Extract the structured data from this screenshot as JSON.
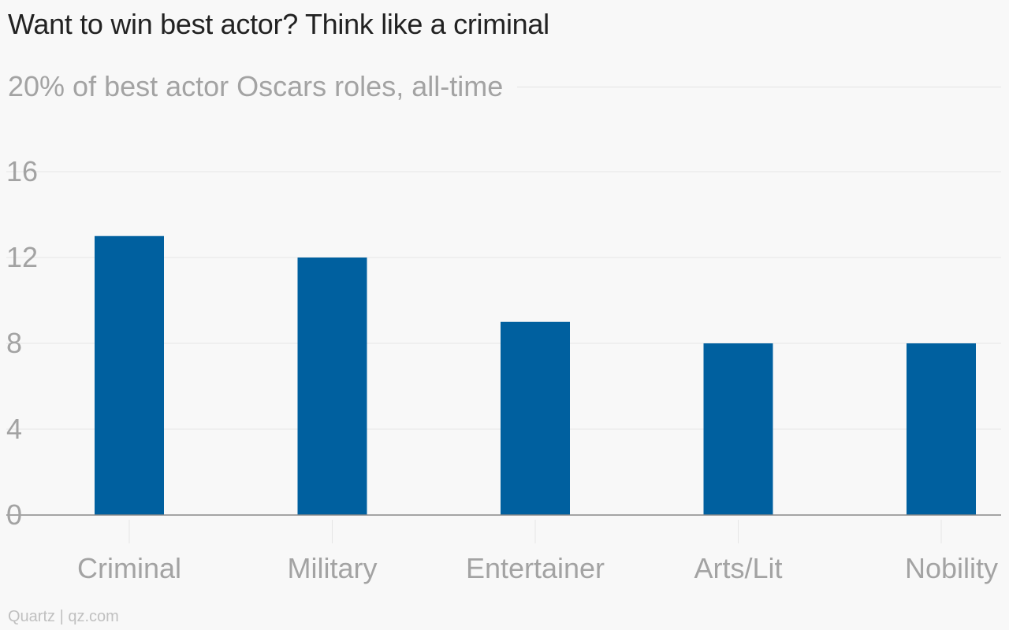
{
  "header": {
    "title": "Want to win best actor? Think like a criminal",
    "subtitle": "20% of best actor Oscars roles, all-time"
  },
  "footer": {
    "source": "Quartz | qz.com"
  },
  "colors": {
    "bar": "#00609f",
    "grid": "#e6e6e6",
    "axis": "#888888",
    "label": "#a3a3a3"
  },
  "chart_data": {
    "type": "bar",
    "title": "Want to win best actor? Think like a criminal",
    "subtitle": "20% of best actor Oscars roles, all-time",
    "categories": [
      "Criminal",
      "Military",
      "Entertainer",
      "Arts/Lit",
      "Nobility"
    ],
    "values": [
      13,
      12,
      9,
      8,
      8
    ],
    "xlabel": "",
    "ylabel": "",
    "ylim": [
      0,
      16
    ],
    "yticks": [
      0,
      4,
      8,
      12,
      16
    ],
    "grid": true,
    "legend": "none",
    "source": "Quartz | qz.com"
  }
}
